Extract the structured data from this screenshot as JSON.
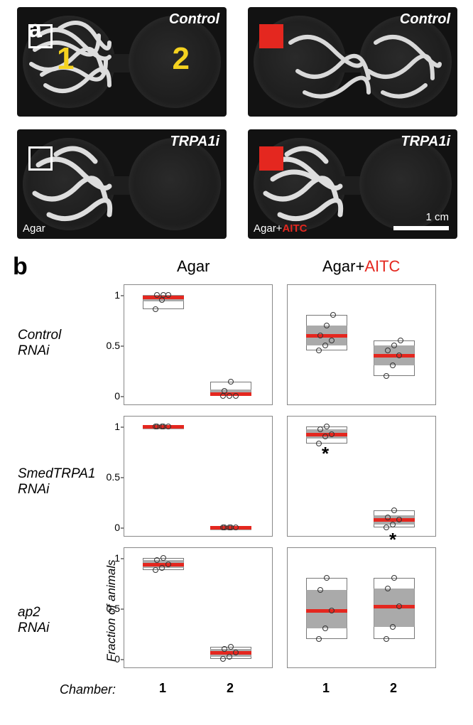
{
  "figure": {
    "letters": {
      "a": "a",
      "b": "b"
    },
    "panel_a": {
      "labels": {
        "control": "Control",
        "trpa1i": "TRPA1i"
      },
      "numbers": {
        "one": "1",
        "two": "2"
      },
      "agar": "Agar",
      "agar_aitc_prefix": "Agar+",
      "aitc": "AITC",
      "scale": "1 cm",
      "marker_colors": {
        "open": "#ffffff",
        "filled": "#e4271f"
      },
      "number_color": "#f4d21f"
    },
    "panel_b": {
      "col_titles": {
        "left": "Agar",
        "right_prefix": "Agar+",
        "right_aitc": "AITC"
      },
      "row_labels": {
        "control": "Control\nRNAi",
        "smed": "SmedTRPA1\nRNAi",
        "ap2": "ap2\nRNAi"
      },
      "y_axis_label": "Fraction of animals",
      "x_axis_label": "Chamber:",
      "chamber_nums": {
        "one": "1",
        "two": "2"
      },
      "y_ticks": [
        "0",
        "0.5",
        "1"
      ],
      "star": "*",
      "colors": {
        "box_fill": "#9b9b9b",
        "median": "#e4271f",
        "axis": "#888888"
      },
      "data": {
        "control_agar": {
          "c1": {
            "median": 0.98,
            "q1": 0.94,
            "q3": 1.0,
            "lo": 0.86,
            "hi": 1.0,
            "pts": [
              0.86,
              0.95,
              1.0,
              1.0,
              1.0
            ]
          },
          "c2": {
            "median": 0.02,
            "q1": 0.0,
            "q3": 0.06,
            "lo": 0.0,
            "hi": 0.14,
            "pts": [
              0.0,
              0.0,
              0.0,
              0.05,
              0.14
            ]
          }
        },
        "control_aitc": {
          "c1": {
            "median": 0.6,
            "q1": 0.5,
            "q3": 0.7,
            "lo": 0.45,
            "hi": 0.8,
            "pts": [
              0.45,
              0.5,
              0.55,
              0.6,
              0.7,
              0.8
            ]
          },
          "c2": {
            "median": 0.4,
            "q1": 0.3,
            "q3": 0.5,
            "lo": 0.2,
            "hi": 0.55,
            "pts": [
              0.2,
              0.3,
              0.4,
              0.45,
              0.5,
              0.55
            ]
          }
        },
        "smed_agar": {
          "c1": {
            "median": 1.0,
            "q1": 1.0,
            "q3": 1.0,
            "lo": 1.0,
            "hi": 1.0,
            "pts": [
              1.0,
              1.0,
              1.0,
              1.0,
              1.0
            ]
          },
          "c2": {
            "median": 0.0,
            "q1": 0.0,
            "q3": 0.0,
            "lo": 0.0,
            "hi": 0.0,
            "pts": [
              0.0,
              0.0,
              0.0,
              0.0,
              0.0
            ]
          }
        },
        "smed_aitc": {
          "c1": {
            "median": 0.92,
            "q1": 0.88,
            "q3": 0.97,
            "lo": 0.83,
            "hi": 1.0,
            "pts": [
              0.83,
              0.9,
              0.92,
              0.97,
              1.0
            ],
            "star": true
          },
          "c2": {
            "median": 0.08,
            "q1": 0.03,
            "q3": 0.12,
            "lo": 0.0,
            "hi": 0.17,
            "pts": [
              0.0,
              0.03,
              0.08,
              0.1,
              0.17
            ],
            "star": true
          }
        },
        "ap2_agar": {
          "c1": {
            "median": 0.94,
            "q1": 0.9,
            "q3": 0.98,
            "lo": 0.88,
            "hi": 1.0,
            "pts": [
              0.88,
              0.9,
              0.94,
              0.98,
              1.0
            ]
          },
          "c2": {
            "median": 0.06,
            "q1": 0.02,
            "q3": 0.1,
            "lo": 0.0,
            "hi": 0.12,
            "pts": [
              0.0,
              0.02,
              0.06,
              0.1,
              0.12
            ]
          }
        },
        "ap2_aitc": {
          "c1": {
            "median": 0.48,
            "q1": 0.3,
            "q3": 0.68,
            "lo": 0.2,
            "hi": 0.8,
            "pts": [
              0.2,
              0.3,
              0.48,
              0.68,
              0.8
            ]
          },
          "c2": {
            "median": 0.52,
            "q1": 0.32,
            "q3": 0.7,
            "lo": 0.2,
            "hi": 0.8,
            "pts": [
              0.2,
              0.32,
              0.52,
              0.7,
              0.8
            ]
          }
        }
      }
    }
  }
}
